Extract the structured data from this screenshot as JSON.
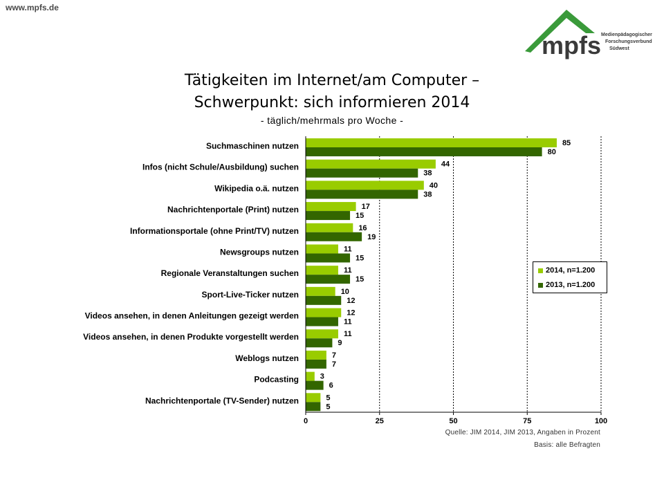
{
  "header": {
    "site_url": "www.mpfs.de",
    "logo": {
      "text": "mpfs",
      "line1": "Medienpädagogischer",
      "line2": "Forschungsverbund",
      "line3": "Südwest",
      "brand_color": "#3a9a3a"
    }
  },
  "footer": {
    "source": "Quelle: JIM 2014, JIM 2013, Angaben in Prozent",
    "basis": "Basis: alle Befragten"
  },
  "chart_data": {
    "type": "bar",
    "orientation": "horizontal",
    "title_line1": "Tätigkeiten im Internet/am Computer –",
    "title_line2": "Schwerpunkt: sich informieren 2014",
    "subtitle": "- täglich/mehrmals pro Woche -",
    "categories": [
      "Suchmaschinen nutzen",
      "Infos (nicht Schule/Ausbildung) suchen",
      "Wikipedia o.ä. nutzen",
      "Nachrichtenportale (Print) nutzen",
      "Informationsportale (ohne Print/TV) nutzen",
      "Newsgroups nutzen",
      "Regionale Veranstaltungen suchen",
      "Sport-Live-Ticker nutzen",
      "Videos ansehen, in denen Anleitungen gezeigt werden",
      "Videos ansehen, in denen Produkte vorgestellt werden",
      "Weblogs nutzen",
      "Podcasting",
      "Nachrichtenportale (TV-Sender) nutzen"
    ],
    "series": [
      {
        "name": "2014, n=1.200",
        "color": "#99cc00",
        "values": [
          85,
          44,
          40,
          17,
          16,
          11,
          11,
          10,
          12,
          11,
          7,
          3,
          5
        ]
      },
      {
        "name": "2013, n=1.200",
        "color": "#336600",
        "values": [
          80,
          38,
          38,
          15,
          19,
          15,
          15,
          12,
          11,
          9,
          7,
          6,
          5
        ]
      }
    ],
    "xlim": [
      0,
      100
    ],
    "xticks": [
      0,
      25,
      50,
      75,
      100
    ],
    "grid": true,
    "data_labels": true,
    "legend_position": "right"
  }
}
